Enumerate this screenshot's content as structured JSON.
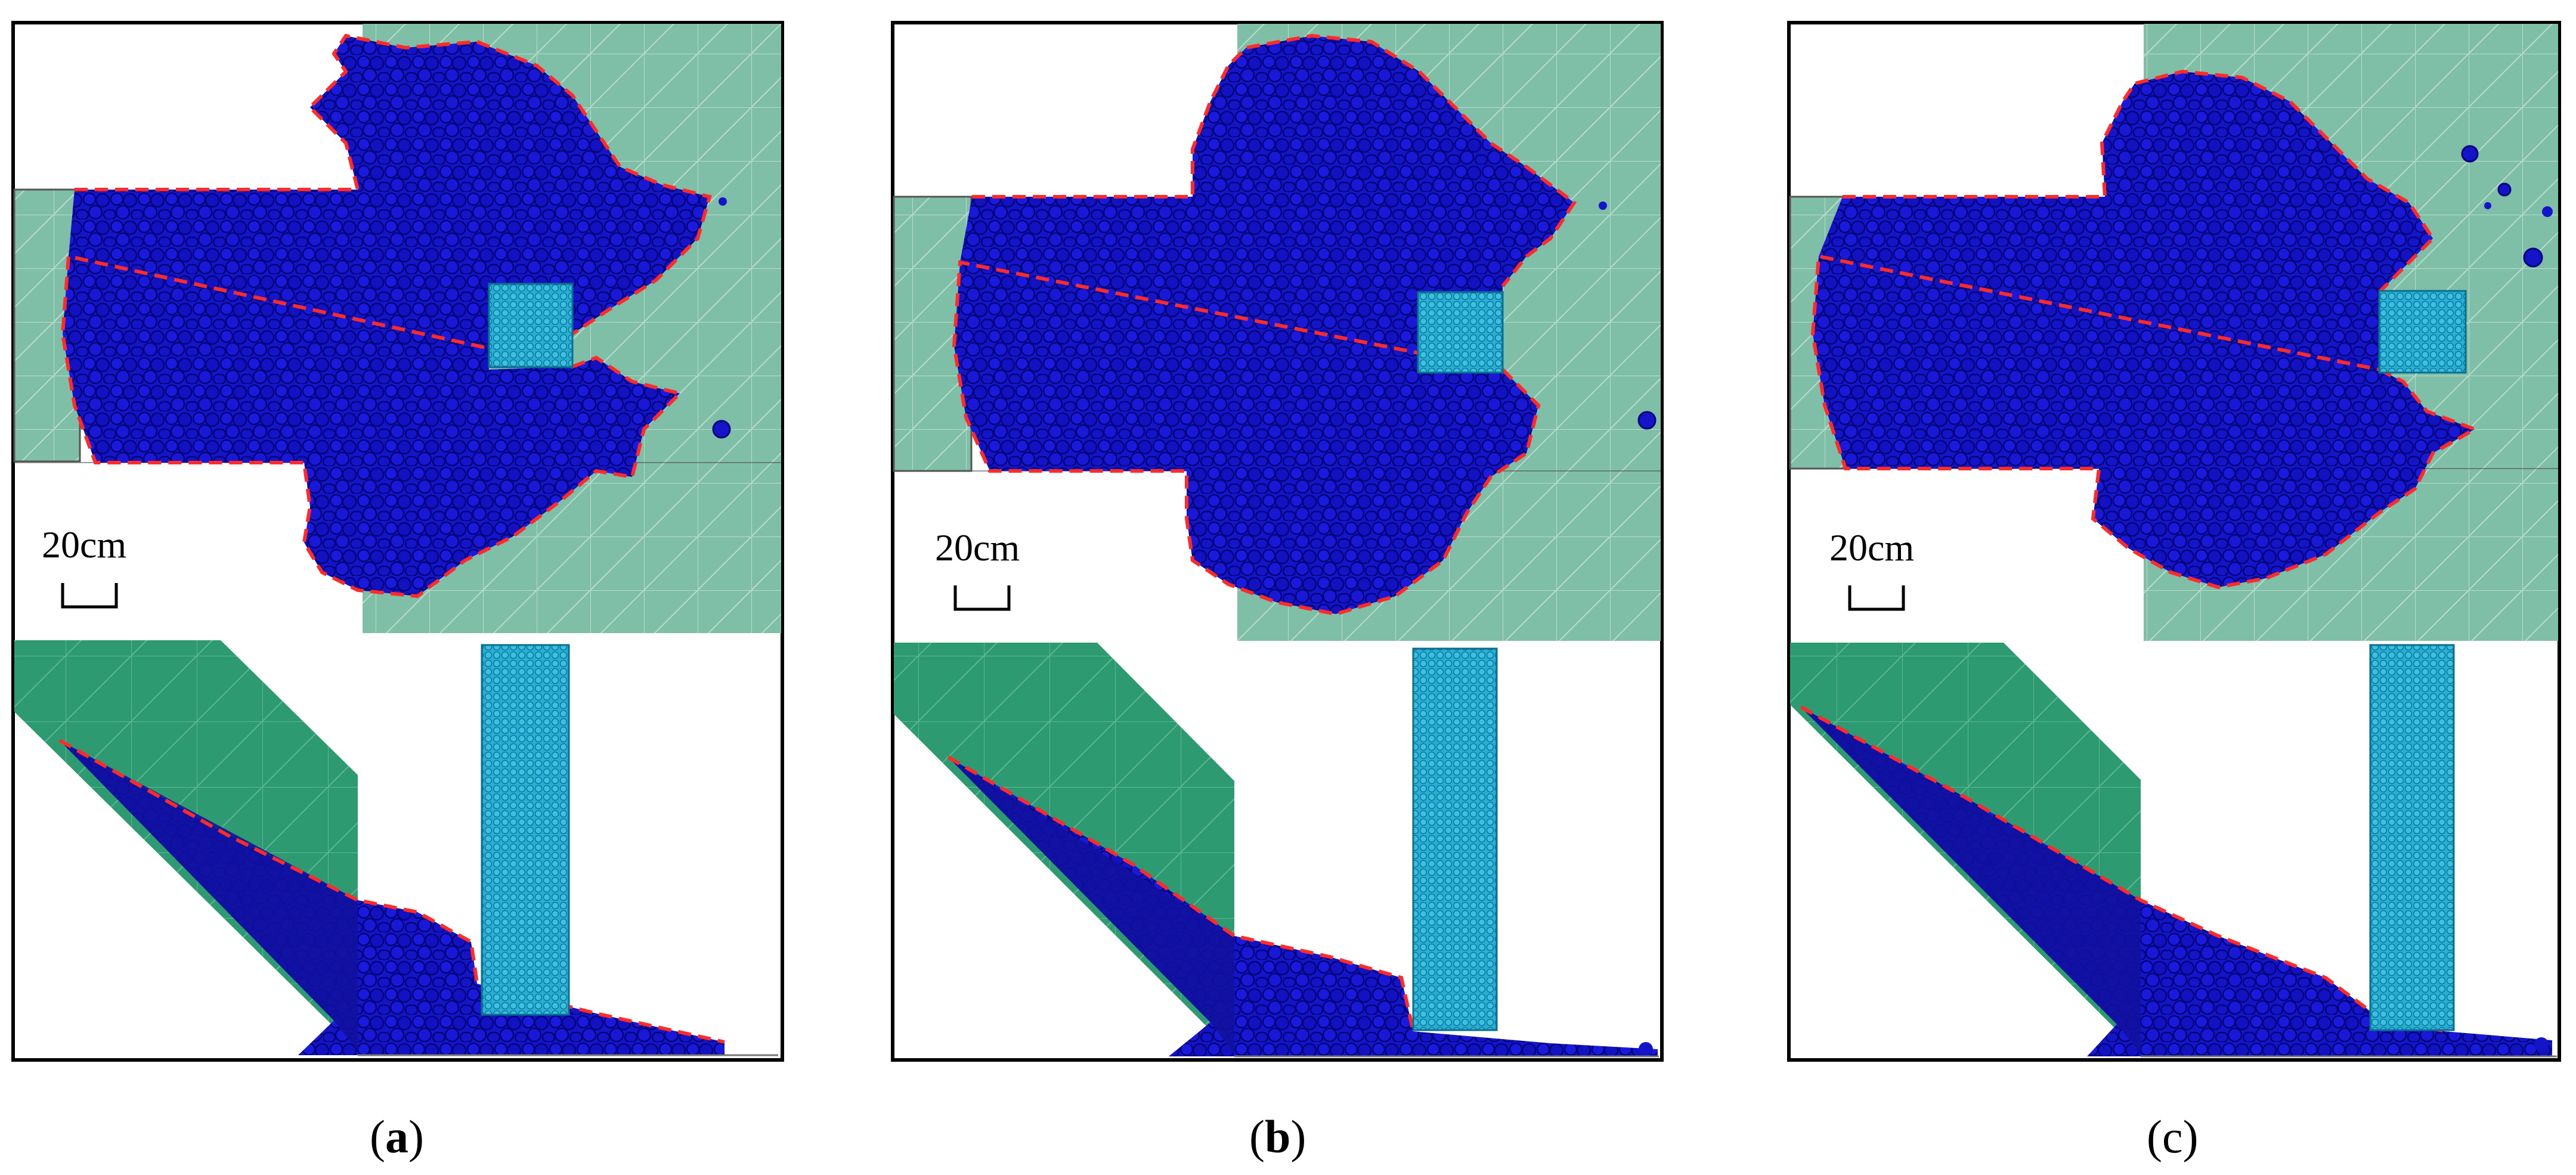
{
  "colors": {
    "particle": "#1010cc",
    "particle_edge": "#000066",
    "obstacle": "#2bb3d6",
    "obstacle_edge": "#0a6f8f",
    "domain_light": "#7fbfa8",
    "domain_dark": "#2e9a72",
    "grid_line": "#b9dccd",
    "boundary": "#ff2a2a",
    "frame": "#000000"
  },
  "icons": {
    "scale_bar": "scale-bar-icon"
  },
  "panels": [
    {
      "id": "a",
      "scale_label": "20cm",
      "caption_open": "(",
      "caption_letter": "a",
      "caption_close": ")"
    },
    {
      "id": "b",
      "scale_label": "20cm",
      "caption_open": "(",
      "caption_letter": "b",
      "caption_close": ")"
    },
    {
      "id": "c",
      "scale_label": "20cm",
      "caption_open": "(",
      "caption_letter": "c",
      "caption_close": ")"
    }
  ]
}
